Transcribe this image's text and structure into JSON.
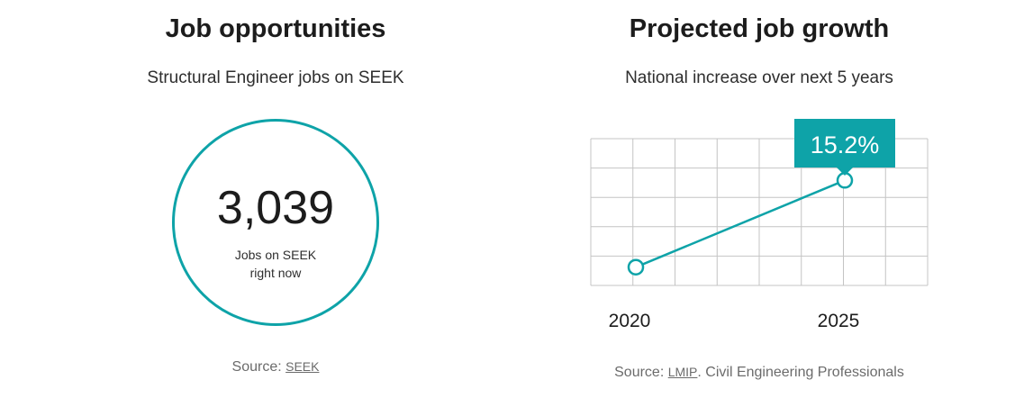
{
  "left_panel": {
    "title": "Job opportunities",
    "subtitle": "Structural Engineer jobs on SEEK",
    "stat_value": "3,039",
    "stat_caption_line1": "Jobs on SEEK",
    "stat_caption_line2": "right now",
    "source_prefix": "Source: ",
    "source_link": "SEEK"
  },
  "right_panel": {
    "title": "Projected job growth",
    "subtitle": "National increase over next 5 years",
    "source_prefix": "Source: ",
    "source_link": "LMIP",
    "source_suffix": ". Civil Engineering Professionals"
  },
  "colors": {
    "accent": "#0ea3a8",
    "grid": "#c4c4c4",
    "text": "#1c1c1c",
    "muted": "#6b6b6b"
  },
  "chart_data": {
    "type": "line",
    "title": "Projected job growth",
    "subtitle": "National increase over next 5 years",
    "x": [
      "2020",
      "2025"
    ],
    "series": [
      {
        "values": [
          0,
          15.2
        ]
      }
    ],
    "annotations": [
      {
        "x": "2025",
        "label": "15.2%"
      }
    ],
    "grid": true,
    "xlabel": "",
    "ylabel": ""
  }
}
